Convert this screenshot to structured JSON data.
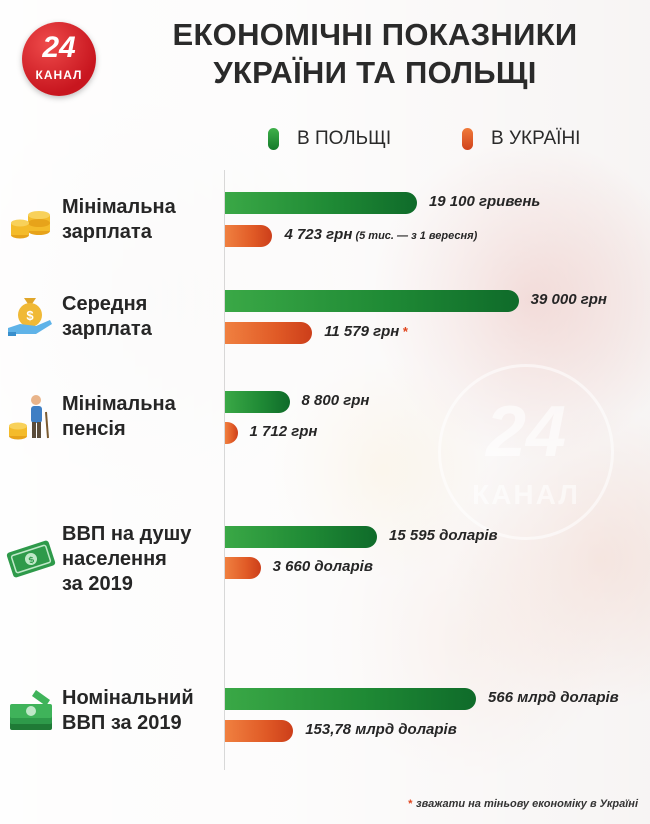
{
  "header": {
    "logo_number": "24",
    "logo_text": "КАНАЛ",
    "title_line1": "ЕКОНОМІЧНІ ПОКАЗНИКИ",
    "title_line2": "УКРАЇНИ ТА ПОЛЬЩІ"
  },
  "legend": {
    "poland": "В ПОЛЬЩІ",
    "ukraine": "В УКРАЇНІ"
  },
  "colors": {
    "poland": "#1f8a35",
    "ukraine": "#e05a26",
    "logo_red": "#c8161f"
  },
  "chart_data": {
    "type": "bar",
    "orientation": "horizontal",
    "series_names": [
      "В ПОЛЬЩІ",
      "В УКРАЇНІ"
    ],
    "groups": [
      {
        "category_lines": [
          "Мінімальна",
          "зарплата"
        ],
        "icon": "coins-stack-icon",
        "poland": {
          "value": 19100,
          "label": "19 100 гривень"
        },
        "ukraine": {
          "value": 4723,
          "label": "4 723 грн",
          "note": "(5 тис. — з 1 вересня)"
        }
      },
      {
        "category_lines": [
          "Середня",
          "зарплата"
        ],
        "icon": "money-bag-hand-icon",
        "poland": {
          "value": 39000,
          "label": "39 000 грн"
        },
        "ukraine": {
          "value": 11579,
          "label": "11 579 грн",
          "mark": "*"
        }
      },
      {
        "category_lines": [
          "Мінімальна",
          "пенсія"
        ],
        "icon": "elderly-coins-icon",
        "poland": {
          "value": 8800,
          "label": "8 800 грн"
        },
        "ukraine": {
          "value": 1712,
          "label": "1 712 грн"
        }
      },
      {
        "category_lines": [
          "ВВП на душу",
          "населення",
          "за 2019"
        ],
        "icon": "banknote-icon",
        "poland": {
          "value": 15595,
          "label": "15 595 доларів"
        },
        "ukraine": {
          "value": 3660,
          "label": "3 660 доларів"
        }
      },
      {
        "category_lines": [
          "Номінальний",
          "ВВП за 2019"
        ],
        "icon": "banknotes-stack-icon",
        "poland": {
          "value": 566,
          "label": "566 млрд доларів"
        },
        "ukraine": {
          "value": 153.78,
          "label": "153,78 млрд доларів"
        }
      }
    ]
  },
  "footnote": {
    "mark": "*",
    "text": "зважати на тіньову економіку в Україні"
  }
}
